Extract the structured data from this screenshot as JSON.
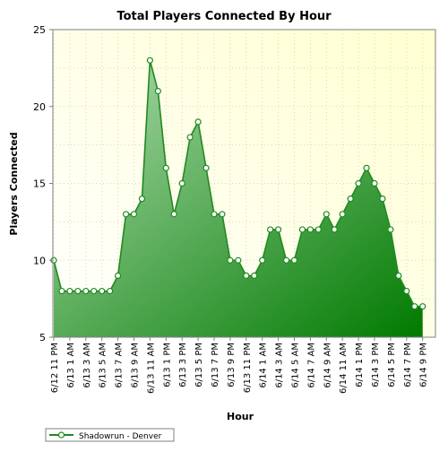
{
  "colors": {
    "plot_bg_top_right": "#ffffd0",
    "plot_bg_bottom_left": "#ffffff",
    "area_light": "#b0dcb0",
    "area_dark": "#007a00",
    "line": "#208a20",
    "marker_fill": "#ffffff",
    "grid": "#d8d8c0",
    "text": "#000000"
  },
  "chart_data": {
    "type": "area",
    "title": "Total Players Connected By Hour",
    "xlabel": "Hour",
    "ylabel": "Players Connected",
    "ylim": [
      5,
      25
    ],
    "yticks": [
      5,
      10,
      15,
      20,
      25
    ],
    "grid": true,
    "legend_position": "bottom-left",
    "tick_labels": [
      "6/12 11 PM",
      "6/13 1 AM",
      "6/13 3 AM",
      "6/13 5 AM",
      "6/13 7 AM",
      "6/13 9 AM",
      "6/13 11 AM",
      "6/13 1 PM",
      "6/13 3 PM",
      "6/13 5 PM",
      "6/13 7 PM",
      "6/13 9 PM",
      "6/13 11 PM",
      "6/14 1 AM",
      "6/14 3 AM",
      "6/14 5 AM",
      "6/14 7 AM",
      "6/14 9 AM",
      "6/14 11 AM",
      "6/14 1 PM",
      "6/14 3 PM",
      "6/14 5 PM",
      "6/14 7 PM",
      "6/14 9 PM"
    ],
    "series": [
      {
        "name": "Shadowrun - Denver",
        "values": [
          10,
          8,
          8,
          8,
          8,
          8,
          8,
          8,
          9,
          13,
          13,
          14,
          23,
          21,
          16,
          13,
          15,
          18,
          19,
          16,
          13,
          13,
          10,
          10,
          9,
          9,
          10,
          12,
          12,
          10,
          10,
          12,
          12,
          12,
          13,
          12,
          13,
          14,
          15,
          16,
          15,
          14,
          12,
          9,
          8,
          7,
          7
        ]
      }
    ]
  }
}
